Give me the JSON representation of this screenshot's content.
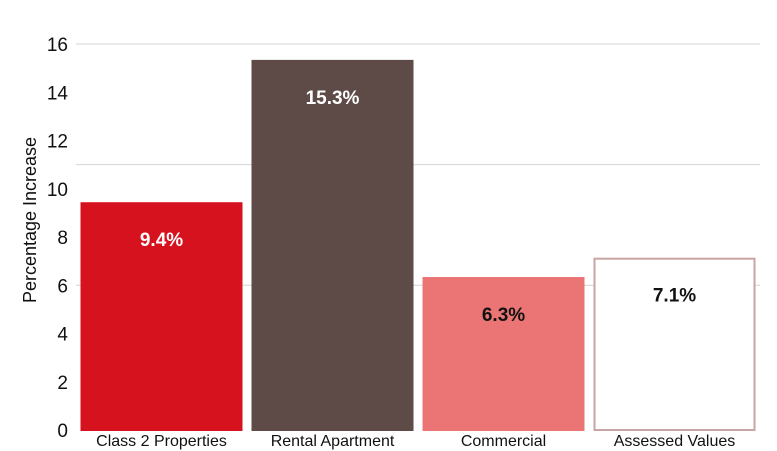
{
  "chart_data": {
    "type": "bar",
    "title": "",
    "xlabel": "",
    "ylabel": "Percentage Increase",
    "ylim": [
      0,
      16
    ],
    "yticks": [
      0,
      2,
      4,
      6,
      8,
      10,
      12,
      14,
      16
    ],
    "grid": true,
    "legend": "none",
    "categories": [
      "Class 2 Properties",
      "Rental Apartment",
      "Commercial",
      "Assessed Values"
    ],
    "values": [
      9.4,
      15.3,
      6.3,
      7.1
    ],
    "data_labels": [
      "9.4%",
      "15.3%",
      "6.3%",
      "7.1%"
    ],
    "bar_colors": [
      "#d7121f",
      "#5e4a46",
      "#eb7575",
      "#ffffff"
    ],
    "bar_outline_colors": [
      "#d7121f",
      "#5e4a46",
      "#eb7575",
      "#c9a4a4"
    ],
    "label_colors": [
      "#ffffff",
      "#ffffff",
      "#111111",
      "#111111"
    ]
  }
}
